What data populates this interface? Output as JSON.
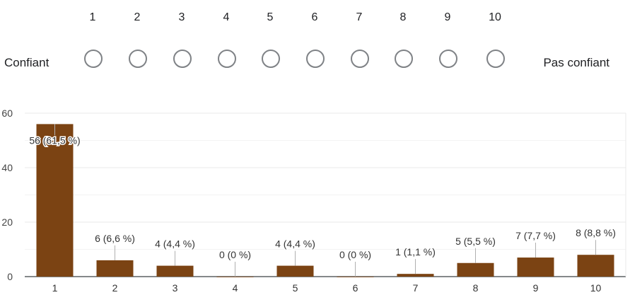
{
  "scale": {
    "numbers": [
      "1",
      "2",
      "3",
      "4",
      "5",
      "6",
      "7",
      "8",
      "9",
      "10"
    ],
    "left_label": "Confiant",
    "right_label": "Pas confiant"
  },
  "chart_data": {
    "type": "bar",
    "categories": [
      "1",
      "2",
      "3",
      "4",
      "5",
      "6",
      "7",
      "8",
      "9",
      "10"
    ],
    "values": [
      56,
      6,
      4,
      0,
      4,
      0,
      1,
      5,
      7,
      8
    ],
    "data_labels": [
      "56 (61,5 %)",
      "6 (6,6 %)",
      "4 (4,4 %)",
      "0 (0 %)",
      "4 (4,4 %)",
      "0 (0 %)",
      "1 (1,1 %)",
      "5 (5,5 %)",
      "7 (7,7 %)",
      "8 (8,8 %)"
    ],
    "ylim": [
      0,
      60
    ],
    "yticks": [
      0,
      20,
      40,
      60
    ],
    "grid": true,
    "bar_color": "#7b4313",
    "title": "",
    "xlabel": "",
    "ylabel": ""
  }
}
